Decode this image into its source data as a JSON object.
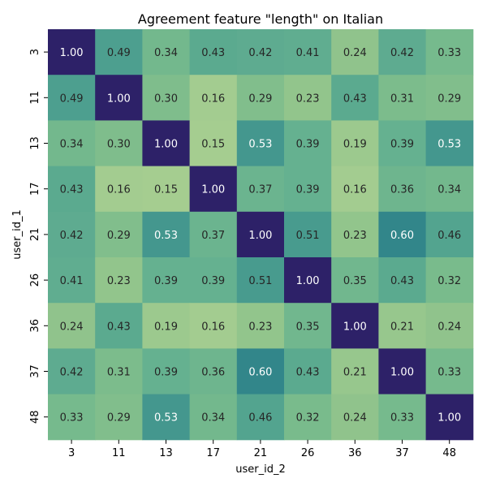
{
  "chart_data": {
    "type": "heatmap",
    "title": "Agreement feature \"length\" on Italian",
    "xlabel": "user_id_2",
    "ylabel": "user_id_1",
    "x_categories": [
      "3",
      "11",
      "13",
      "17",
      "21",
      "26",
      "36",
      "37",
      "48"
    ],
    "y_categories": [
      "3",
      "11",
      "13",
      "17",
      "21",
      "26",
      "36",
      "37",
      "48"
    ],
    "values": [
      [
        1.0,
        0.49,
        0.34,
        0.43,
        0.42,
        0.41,
        0.24,
        0.42,
        0.33
      ],
      [
        0.49,
        1.0,
        0.3,
        0.16,
        0.29,
        0.23,
        0.43,
        0.31,
        0.29
      ],
      [
        0.34,
        0.3,
        1.0,
        0.15,
        0.53,
        0.39,
        0.19,
        0.39,
        0.53
      ],
      [
        0.43,
        0.16,
        0.15,
        1.0,
        0.37,
        0.39,
        0.16,
        0.36,
        0.34
      ],
      [
        0.42,
        0.29,
        0.53,
        0.37,
        1.0,
        0.51,
        0.23,
        0.6,
        0.46
      ],
      [
        0.41,
        0.23,
        0.39,
        0.39,
        0.51,
        1.0,
        0.35,
        0.43,
        0.32
      ],
      [
        0.24,
        0.43,
        0.19,
        0.16,
        0.23,
        0.35,
        1.0,
        0.21,
        0.24
      ],
      [
        0.42,
        0.31,
        0.39,
        0.36,
        0.6,
        0.43,
        0.21,
        1.0,
        0.33
      ],
      [
        0.33,
        0.29,
        0.53,
        0.34,
        0.46,
        0.32,
        0.24,
        0.33,
        1.0
      ]
    ],
    "value_format": "2 decimals",
    "colorscale": "crest",
    "colorbar": false,
    "grid": false
  }
}
